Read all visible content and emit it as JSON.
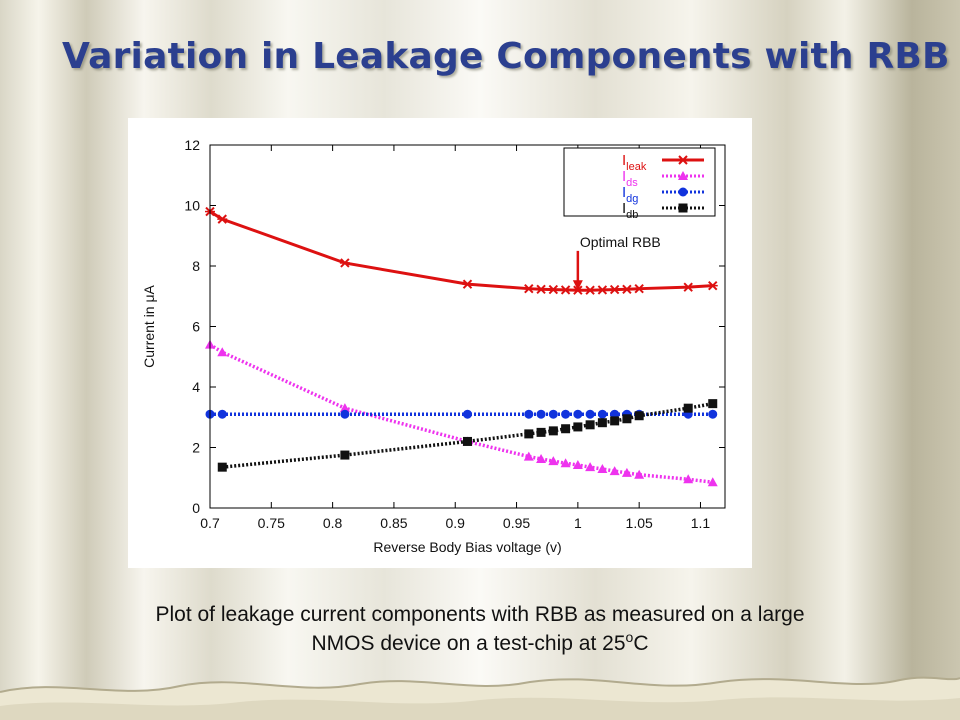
{
  "slide": {
    "title": "Variation in Leakage Components with RBB",
    "caption_line1": "Plot of leakage current components with RBB as measured on a large",
    "caption_line2_pre": "NMOS device on a test-chip at 25",
    "caption_sup": "o",
    "caption_post": "C"
  },
  "chart_data": {
    "type": "line",
    "title": "",
    "xlabel": "Reverse Body Bias voltage (v)",
    "ylabel": "Current in μA",
    "xlim": [
      0.7,
      1.12
    ],
    "ylim": [
      0,
      12
    ],
    "x_ticks": [
      0.7,
      0.75,
      0.8,
      0.85,
      0.9,
      0.95,
      1,
      1.05,
      1.1
    ],
    "y_ticks": [
      0,
      2,
      4,
      6,
      8,
      10,
      12
    ],
    "x_tick_labels": [
      "0.7",
      "0.75",
      "0.8",
      "0.85",
      "0.9",
      "0.95",
      "1",
      "1.05",
      "1.1"
    ],
    "y_tick_labels": [
      "0",
      "2",
      "4",
      "6",
      "8",
      "10",
      "12"
    ],
    "grid": false,
    "legend_position": "top-right",
    "series": [
      {
        "name": "I",
        "subscript": "leak",
        "color": "#dd1111",
        "style": "solid",
        "marker": "star",
        "x": [
          0.7,
          0.71,
          0.81,
          0.91,
          0.96,
          0.97,
          0.98,
          0.99,
          1.0,
          1.01,
          1.02,
          1.03,
          1.04,
          1.05,
          1.09,
          1.11
        ],
        "values": [
          9.8,
          9.55,
          8.1,
          7.4,
          7.25,
          7.23,
          7.22,
          7.21,
          7.2,
          7.2,
          7.21,
          7.22,
          7.23,
          7.25,
          7.3,
          7.35
        ]
      },
      {
        "name": "I",
        "subscript": "ds",
        "color": "#ee33ee",
        "style": "dotted",
        "marker": "triangle",
        "x": [
          0.7,
          0.71,
          0.81,
          0.91,
          0.96,
          0.97,
          0.98,
          0.99,
          1.0,
          1.01,
          1.02,
          1.03,
          1.04,
          1.05,
          1.09,
          1.11
        ],
        "values": [
          5.4,
          5.15,
          3.3,
          2.2,
          1.7,
          1.62,
          1.55,
          1.48,
          1.42,
          1.35,
          1.29,
          1.22,
          1.16,
          1.1,
          0.95,
          0.85
        ]
      },
      {
        "name": "I",
        "subscript": "dg",
        "color": "#1133dd",
        "style": "dotted",
        "marker": "circle",
        "x": [
          0.7,
          0.71,
          0.81,
          0.91,
          0.96,
          0.97,
          0.98,
          0.99,
          1.0,
          1.01,
          1.02,
          1.03,
          1.04,
          1.05,
          1.09,
          1.11
        ],
        "values": [
          3.1,
          3.1,
          3.1,
          3.1,
          3.1,
          3.1,
          3.1,
          3.1,
          3.1,
          3.1,
          3.1,
          3.1,
          3.1,
          3.1,
          3.1,
          3.1
        ]
      },
      {
        "name": "I",
        "subscript": "db",
        "color": "#111111",
        "style": "dotted",
        "marker": "square",
        "x": [
          0.71,
          0.81,
          0.91,
          0.96,
          0.97,
          0.98,
          0.99,
          1.0,
          1.01,
          1.02,
          1.03,
          1.04,
          1.05,
          1.09,
          1.11
        ],
        "values": [
          1.35,
          1.75,
          2.2,
          2.45,
          2.5,
          2.55,
          2.62,
          2.68,
          2.75,
          2.82,
          2.88,
          2.95,
          3.05,
          3.3,
          3.45
        ]
      }
    ],
    "annotations": [
      {
        "text": "Optimal RBB",
        "arrow_to_x": 1.0,
        "arrow_to_y": 7.2,
        "arrow_from_y": 8.5,
        "color": "#dd1111"
      }
    ]
  }
}
